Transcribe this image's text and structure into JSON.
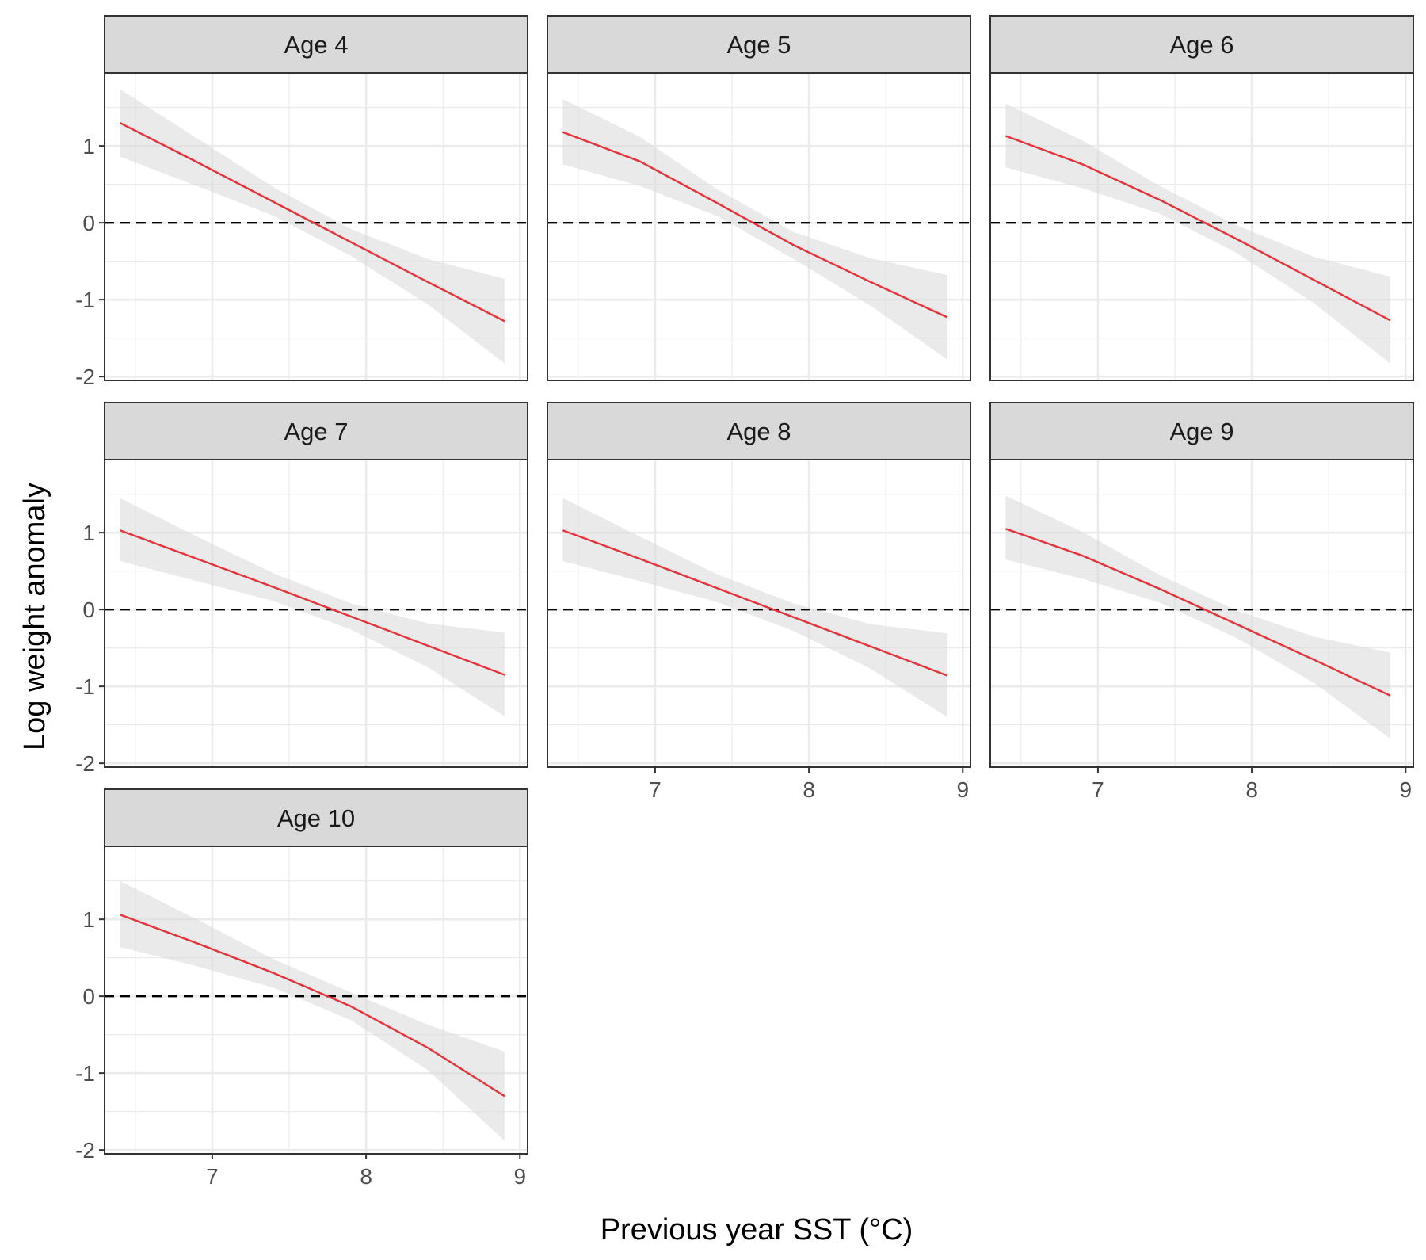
{
  "colors": {
    "fit_line": "#e8323a",
    "ribbon": "#d9d9d9",
    "strip_fill": "#d9d9d9",
    "grid": "#ebebeb",
    "panel_border": "#333333",
    "reference_line": "#000000"
  },
  "chart_data": {
    "type": "line",
    "facet": "age",
    "ncol": 3,
    "xlabel": "Previous year SST (°C)",
    "ylabel": "Log weight anomaly",
    "xlim": [
      6.3,
      9.05
    ],
    "ylim": [
      -2.05,
      1.95
    ],
    "x_ticks": [
      7,
      8,
      9
    ],
    "x_tick_labels": [
      "7",
      "8",
      "9"
    ],
    "y_ticks": [
      -2,
      -1,
      0,
      1
    ],
    "y_tick_labels": [
      "-2",
      "-1",
      "0",
      "1"
    ],
    "reference_line": {
      "y": 0,
      "style": "dashed"
    },
    "ribbon": "confidence band",
    "grid": true,
    "panels": [
      {
        "label": "Age 4",
        "x": [
          6.4,
          6.9,
          7.4,
          7.9,
          8.4,
          8.9
        ],
        "fit": [
          1.3,
          0.79,
          0.27,
          -0.25,
          -0.77,
          -1.28
        ],
        "lower": [
          0.86,
          0.48,
          0.09,
          -0.43,
          -1.06,
          -1.83
        ],
        "upper": [
          1.74,
          1.1,
          0.46,
          -0.08,
          -0.47,
          -0.73
        ]
      },
      {
        "label": "Age 5",
        "x": [
          6.4,
          6.9,
          7.4,
          7.9,
          8.4,
          8.9
        ],
        "fit": [
          1.18,
          0.8,
          0.26,
          -0.29,
          -0.77,
          -1.23
        ],
        "lower": [
          0.76,
          0.48,
          0.09,
          -0.47,
          -1.08,
          -1.78
        ],
        "upper": [
          1.61,
          1.12,
          0.44,
          -0.12,
          -0.46,
          -0.68
        ]
      },
      {
        "label": "Age 6",
        "x": [
          6.4,
          6.9,
          7.4,
          7.9,
          8.4,
          8.9
        ],
        "fit": [
          1.13,
          0.76,
          0.3,
          -0.21,
          -0.74,
          -1.27
        ],
        "lower": [
          0.72,
          0.45,
          0.12,
          -0.39,
          -1.04,
          -1.83
        ],
        "upper": [
          1.55,
          1.07,
          0.48,
          -0.03,
          -0.44,
          -0.7
        ]
      },
      {
        "label": "Age 7",
        "x": [
          6.4,
          6.9,
          7.4,
          7.9,
          8.4,
          8.9
        ],
        "fit": [
          1.03,
          0.66,
          0.29,
          -0.09,
          -0.47,
          -0.85
        ],
        "lower": [
          0.63,
          0.37,
          0.11,
          -0.26,
          -0.75,
          -1.39
        ],
        "upper": [
          1.45,
          0.95,
          0.47,
          0.08,
          -0.18,
          -0.3
        ]
      },
      {
        "label": "Age 8",
        "x": [
          6.4,
          6.9,
          7.4,
          7.9,
          8.4,
          8.9
        ],
        "fit": [
          1.03,
          0.66,
          0.28,
          -0.1,
          -0.48,
          -0.86
        ],
        "lower": [
          0.63,
          0.37,
          0.1,
          -0.28,
          -0.77,
          -1.4
        ],
        "upper": [
          1.45,
          0.95,
          0.46,
          0.08,
          -0.19,
          -0.31
        ]
      },
      {
        "label": "Age 9",
        "x": [
          6.4,
          6.9,
          7.4,
          7.9,
          8.4,
          8.9
        ],
        "fit": [
          1.05,
          0.7,
          0.27,
          -0.19,
          -0.65,
          -1.12
        ],
        "lower": [
          0.65,
          0.4,
          0.09,
          -0.37,
          -0.95,
          -1.68
        ],
        "upper": [
          1.48,
          1.01,
          0.45,
          -0.01,
          -0.35,
          -0.56
        ]
      },
      {
        "label": "Age 10",
        "x": [
          6.4,
          6.9,
          7.4,
          7.9,
          8.4,
          8.9
        ],
        "fit": [
          1.06,
          0.69,
          0.3,
          -0.13,
          -0.67,
          -1.3
        ],
        "lower": [
          0.64,
          0.39,
          0.11,
          -0.31,
          -0.96,
          -1.88
        ],
        "upper": [
          1.5,
          1.0,
          0.48,
          0.05,
          -0.37,
          -0.72
        ]
      }
    ]
  }
}
